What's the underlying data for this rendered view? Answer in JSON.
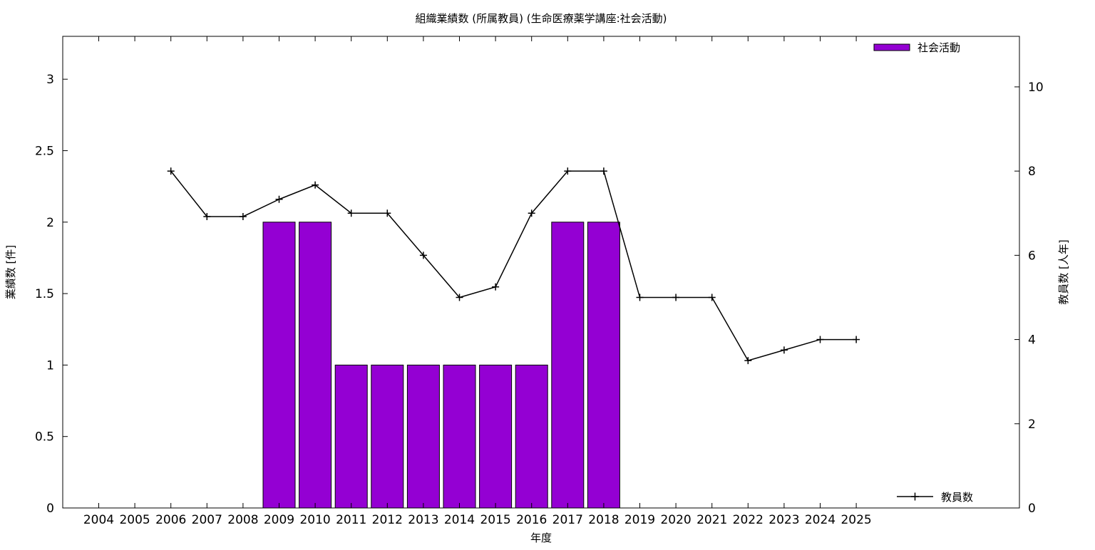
{
  "chart_data": {
    "type": "bar",
    "title": "組織業績数 (所属教員) (生命医療薬学講座:社会活動)",
    "xlabel": "年度",
    "ylabel": "業績数 [件]",
    "y2label": "教員数 [人年]",
    "categories": [
      "2004",
      "2005",
      "2006",
      "2007",
      "2008",
      "2009",
      "2010",
      "2011",
      "2012",
      "2013",
      "2014",
      "2015",
      "2016",
      "2017",
      "2018",
      "2019",
      "2020",
      "2021",
      "2022",
      "2023",
      "2024",
      "2025"
    ],
    "series": [
      {
        "name": "社会活動",
        "type": "bar",
        "axis": "left",
        "color": "#9400d3",
        "values": [
          null,
          null,
          null,
          null,
          null,
          2,
          2,
          1,
          1,
          1,
          1,
          1,
          1,
          2,
          2,
          null,
          null,
          null,
          null,
          null,
          null,
          null
        ]
      },
      {
        "name": "教員数",
        "type": "line",
        "axis": "right",
        "color": "#000000",
        "values": [
          null,
          null,
          8,
          6.92,
          6.92,
          7.33,
          7.67,
          7,
          7,
          6,
          5,
          5.25,
          7,
          8,
          8,
          5,
          5,
          5,
          3.5,
          3.75,
          4,
          4
        ]
      }
    ],
    "ylim": [
      0,
      3.3
    ],
    "y2lim": [
      0,
      11.2
    ],
    "yticks": [
      "0",
      "0.5",
      "1",
      "1.5",
      "2",
      "2.5",
      "3"
    ],
    "y2ticks": [
      "0",
      "2",
      "4",
      "6",
      "8",
      "10"
    ],
    "legend": {
      "position": "top-right / bottom-right"
    },
    "grid": false
  }
}
